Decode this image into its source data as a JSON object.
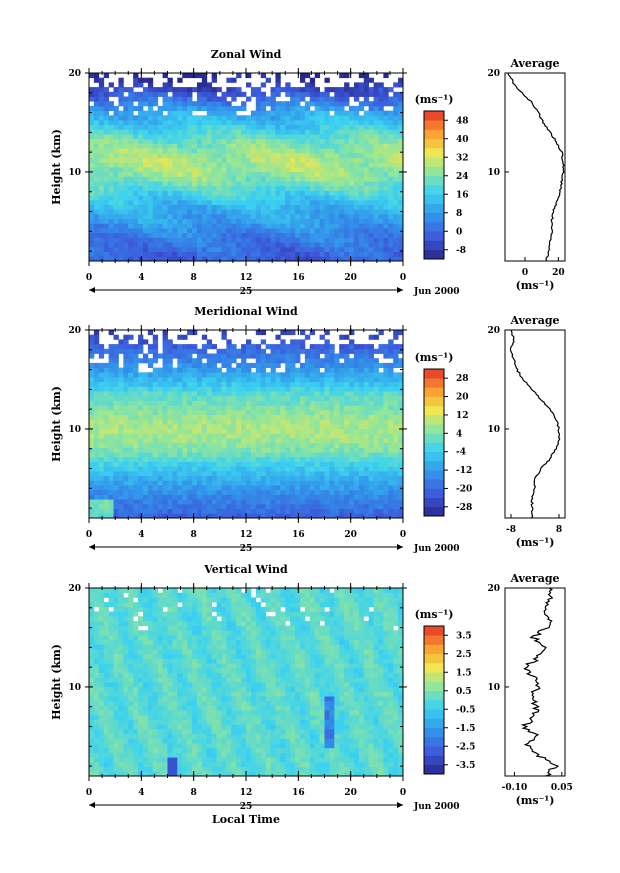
{
  "chart_data": [
    {
      "type": "heatmap",
      "title": "Zonal Wind",
      "ylabel": "Height (km)",
      "unit_label": "(ms⁻¹)",
      "date_label": "Jun 2000",
      "date_day": "25",
      "x_ticks": [
        "0",
        "4",
        "8",
        "12",
        "16",
        "20",
        "0"
      ],
      "y_ticks": [
        "20",
        "10"
      ],
      "ylim": [
        1,
        20
      ],
      "xlim": [
        0,
        24
      ],
      "colorbar": {
        "values": [
          -8,
          0,
          8,
          16,
          24,
          32,
          40,
          48
        ],
        "labels": [
          "-8",
          "0",
          "8",
          "16",
          "24",
          "32",
          "40",
          "48"
        ],
        "range": [
          -12,
          52
        ]
      },
      "average": {
        "title": "Average",
        "xlabel": "(ms⁻¹)",
        "x_ticks": [
          "0",
          "20"
        ],
        "xlim": [
          -12,
          24
        ],
        "profile": [
          [
            1,
            13
          ],
          [
            2,
            14
          ],
          [
            3,
            15
          ],
          [
            4,
            16
          ],
          [
            5,
            16
          ],
          [
            6,
            17
          ],
          [
            7,
            19
          ],
          [
            8,
            21
          ],
          [
            9,
            22
          ],
          [
            10,
            23
          ],
          [
            11,
            23
          ],
          [
            12,
            22
          ],
          [
            13,
            19
          ],
          [
            14,
            15
          ],
          [
            15,
            11
          ],
          [
            16,
            8
          ],
          [
            17,
            4
          ],
          [
            18,
            -2
          ],
          [
            19,
            -7
          ],
          [
            20,
            -10
          ]
        ]
      }
    },
    {
      "type": "heatmap",
      "title": "Meridional Wind",
      "ylabel": "Height (km)",
      "unit_label": "(ms⁻¹)",
      "date_label": "Jun 2000",
      "date_day": "25",
      "x_ticks": [
        "0",
        "4",
        "8",
        "12",
        "16",
        "20",
        "0"
      ],
      "y_ticks": [
        "20",
        "10"
      ],
      "ylim": [
        1,
        20
      ],
      "xlim": [
        0,
        24
      ],
      "colorbar": {
        "values": [
          -28,
          -20,
          -12,
          -4,
          4,
          12,
          20,
          28
        ],
        "labels": [
          "-28",
          "-20",
          "-12",
          "-4",
          "4",
          "12",
          "20",
          "28"
        ],
        "range": [
          -32,
          32
        ]
      },
      "average": {
        "title": "Average",
        "xlabel": "(ms⁻¹)",
        "x_ticks": [
          "-8",
          "8"
        ],
        "xlim": [
          -10,
          10
        ],
        "profile": [
          [
            1,
            -1
          ],
          [
            2,
            -1
          ],
          [
            3,
            -1
          ],
          [
            4,
            0
          ],
          [
            5,
            0
          ],
          [
            6,
            2
          ],
          [
            7,
            5
          ],
          [
            8,
            7
          ],
          [
            9,
            8
          ],
          [
            10,
            8
          ],
          [
            11,
            7
          ],
          [
            12,
            5
          ],
          [
            13,
            2
          ],
          [
            14,
            -1
          ],
          [
            15,
            -4
          ],
          [
            16,
            -6
          ],
          [
            17,
            -7
          ],
          [
            18,
            -8
          ],
          [
            19,
            -7
          ],
          [
            20,
            -8
          ]
        ]
      }
    },
    {
      "type": "heatmap",
      "title": "Vertical Wind",
      "ylabel": "Height (km)",
      "xlabel": "Local Time",
      "unit_label": "(ms⁻¹)",
      "date_label": "Jun 2000",
      "date_day": "25",
      "x_ticks": [
        "0",
        "4",
        "8",
        "12",
        "16",
        "20",
        "0"
      ],
      "y_ticks": [
        "20",
        "10"
      ],
      "ylim": [
        1,
        20
      ],
      "xlim": [
        0,
        24
      ],
      "colorbar": {
        "values": [
          -3.5,
          -2.5,
          -1.5,
          -0.5,
          0.5,
          1.5,
          2.5,
          3.5
        ],
        "labels": [
          "-3.5",
          "-2.5",
          "-1.5",
          "-0.5",
          "0.5",
          "1.5",
          "2.5",
          "3.5"
        ],
        "range": [
          -4,
          4
        ]
      },
      "average": {
        "title": "Average",
        "xlabel": "(ms⁻¹)",
        "x_ticks": [
          "-0.10",
          "0.05"
        ],
        "xlim": [
          -0.13,
          0.06
        ],
        "profile": [
          [
            1,
            0.0
          ],
          [
            2,
            0.03
          ],
          [
            3,
            -0.02
          ],
          [
            4,
            -0.06
          ],
          [
            5,
            -0.03
          ],
          [
            6,
            -0.07
          ],
          [
            7,
            -0.04
          ],
          [
            8,
            -0.03
          ],
          [
            9,
            -0.05
          ],
          [
            10,
            -0.02
          ],
          [
            11,
            -0.04
          ],
          [
            12,
            -0.07
          ],
          [
            13,
            -0.02
          ],
          [
            14,
            -0.01
          ],
          [
            15,
            -0.04
          ],
          [
            16,
            0.0
          ],
          [
            17,
            0.01
          ],
          [
            18,
            0.0
          ],
          [
            19,
            0.02
          ],
          [
            20,
            0.01
          ]
        ]
      }
    }
  ]
}
